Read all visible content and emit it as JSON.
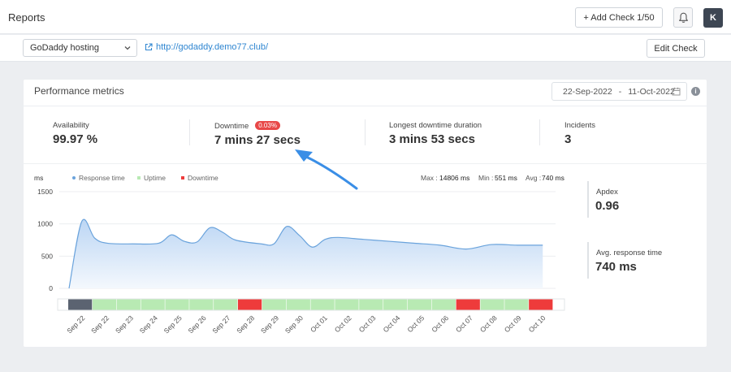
{
  "header": {
    "title": "Reports",
    "add_check_label": "+ Add Check 1/50",
    "avatar_initial": "K"
  },
  "subbar": {
    "check_select": "GoDaddy hosting",
    "url": "http://godaddy.demo77.club/",
    "edit_label": "Edit Check"
  },
  "card": {
    "title": "Performance metrics",
    "date_from": "22-Sep-2022",
    "date_sep": "-",
    "date_to": "11-Oct-2022",
    "info_glyph": "i"
  },
  "stats": {
    "availability": {
      "label": "Availability",
      "value": "99.97 %"
    },
    "downtime": {
      "label": "Downtime",
      "badge": "0.03%",
      "value": "7 mins 27 secs"
    },
    "longest": {
      "label": "Longest downtime duration",
      "value": "3 mins 53 secs"
    },
    "incidents": {
      "label": "Incidents",
      "value": "3"
    }
  },
  "side_stats": {
    "apdex": {
      "label": "Apdex",
      "value": "0.96"
    },
    "avg": {
      "label": "Avg. response time",
      "value": "740 ms"
    }
  },
  "chart_data": {
    "type": "area",
    "ylabel": "ms",
    "ylim": [
      0,
      1500
    ],
    "yticks": [
      0,
      500,
      1000,
      1500
    ],
    "legend": [
      {
        "name": "Response time",
        "color": "#6aa3dc"
      },
      {
        "name": "Uptime",
        "color": "#b8eab3"
      },
      {
        "name": "Downtime",
        "color": "#ee3b3b"
      }
    ],
    "summary": {
      "max_label": "Max :",
      "max_value": "14806 ms",
      "min_label": "Min :",
      "min_value": "551 ms",
      "avg_label": "Avg :",
      "avg_value": "740 ms"
    },
    "series": [
      {
        "name": "Response time",
        "points": [
          [
            "Sep 22 00:00",
            0
          ],
          [
            "Sep 22 12:00",
            1040
          ],
          [
            "Sep 23 00:00",
            780
          ],
          [
            "Sep 23 12:00",
            700
          ],
          [
            "Sep 24 12:00",
            690
          ],
          [
            "Sep 25 12:00",
            700
          ],
          [
            "Sep 26 00:00",
            830
          ],
          [
            "Sep 26 12:00",
            730
          ],
          [
            "Sep 27 00:00",
            720
          ],
          [
            "Sep 27 12:00",
            940
          ],
          [
            "Sep 28 00:00",
            870
          ],
          [
            "Sep 28 12:00",
            750
          ],
          [
            "Sep 29 12:00",
            690
          ],
          [
            "Sep 30 00:00",
            690
          ],
          [
            "Sep 30 12:00",
            960
          ],
          [
            "Oct 01 00:00",
            820
          ],
          [
            "Oct 01 12:00",
            640
          ],
          [
            "Oct 02 00:00",
            760
          ],
          [
            "Oct 02 12:00",
            790
          ],
          [
            "Oct 03 12:00",
            760
          ],
          [
            "Oct 04 12:00",
            730
          ],
          [
            "Oct 05 12:00",
            700
          ],
          [
            "Oct 06 12:00",
            670
          ],
          [
            "Oct 07 12:00",
            610
          ],
          [
            "Oct 08 12:00",
            680
          ],
          [
            "Oct 09 12:00",
            670
          ],
          [
            "Oct 10 12:00",
            670
          ]
        ]
      }
    ],
    "categories": [
      "Sep 22",
      "Sep 22",
      "Sep 23",
      "Sep 24",
      "Sep 25",
      "Sep 26",
      "Sep 27",
      "Sep 28",
      "Sep 29",
      "Sep 30",
      "Oct 01",
      "Oct 02",
      "Oct 03",
      "Oct 04",
      "Oct 05",
      "Oct 06",
      "Oct 07",
      "Oct 08",
      "Oct 09",
      "Oct 10"
    ],
    "status": [
      "nodata",
      "up",
      "up",
      "up",
      "up",
      "up",
      "up",
      "down",
      "up",
      "up",
      "up",
      "up",
      "up",
      "up",
      "up",
      "up",
      "down",
      "up",
      "up",
      "down"
    ],
    "status_colors": {
      "up": "#b8eab3",
      "down": "#ee3b3b",
      "nodata": "#5b6371"
    },
    "line_color": "#6aa3dc",
    "fill_top": "#bcd6f4",
    "fill_bottom": "#f4f8fd"
  }
}
